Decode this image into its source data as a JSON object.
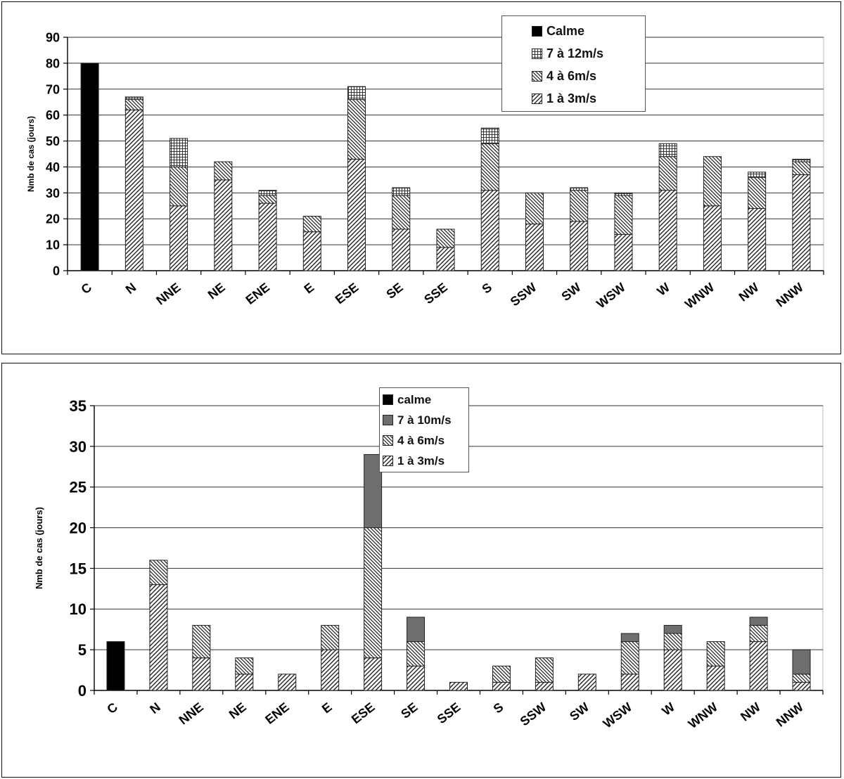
{
  "segment_styles": {
    "calme": {
      "fill": "#000000",
      "pattern": "solid"
    },
    "1-3": {
      "pattern": "hatch-forward"
    },
    "4-6": {
      "pattern": "hatch-backward"
    },
    "7-12": {
      "pattern": "grid"
    },
    "7-10": {
      "pattern": "solid-gray",
      "fill": "#6e6e6e"
    }
  },
  "chart_data": [
    {
      "type": "bar",
      "stacked": true,
      "ylabel": "Nmb de cas (jours)",
      "xlabel": "",
      "ylim": [
        0,
        90
      ],
      "yticks": [
        0,
        10,
        20,
        30,
        40,
        50,
        60,
        70,
        80,
        90
      ],
      "grid": true,
      "legend_position": "top-right",
      "categories": [
        "C",
        "N",
        "NNE",
        "NE",
        "ENE",
        "E",
        "ESE",
        "SE",
        "SSE",
        "S",
        "SSW",
        "SW",
        "WSW",
        "W",
        "WNW",
        "NW",
        "NNW"
      ],
      "series": [
        {
          "name": "1 à 3m/s",
          "style": "1-3",
          "values": [
            0,
            62,
            25,
            35,
            26,
            15,
            43,
            16,
            9,
            31,
            18,
            19,
            14,
            31,
            25,
            24,
            37
          ]
        },
        {
          "name": "4 à 6m/s",
          "style": "4-6",
          "values": [
            0,
            4,
            15,
            7,
            3,
            6,
            23,
            13,
            7,
            18,
            12,
            12,
            15,
            13,
            19,
            12,
            5
          ]
        },
        {
          "name": "7 à 12m/s",
          "style": "7-12",
          "values": [
            0,
            1,
            11,
            0,
            2,
            0,
            5,
            3,
            0,
            6,
            0,
            1,
            1,
            5,
            0,
            2,
            1
          ]
        },
        {
          "name": "Calme",
          "style": "calme",
          "values": [
            80,
            0,
            0,
            0,
            0,
            0,
            0,
            0,
            0,
            0,
            0,
            0,
            0,
            0,
            0,
            0,
            0
          ]
        }
      ],
      "legend_order": [
        "Calme",
        "7 à 12m/s",
        "4 à 6m/s",
        "1 à 3m/s"
      ]
    },
    {
      "type": "bar",
      "stacked": true,
      "ylabel": "Nmb de cas (jours)",
      "xlabel": "",
      "ylim": [
        0,
        35
      ],
      "yticks": [
        0,
        5,
        10,
        15,
        20,
        25,
        30,
        35
      ],
      "grid": true,
      "legend_position": "top-center",
      "categories": [
        "C",
        "N",
        "NNE",
        "NE",
        "ENE",
        "E",
        "ESE",
        "SE",
        "SSE",
        "S",
        "SSW",
        "SW",
        "WSW",
        "W",
        "WNW",
        "NW",
        "NNW"
      ],
      "series": [
        {
          "name": "1 à 3m/s",
          "style": "1-3",
          "values": [
            0,
            13,
            4,
            2,
            2,
            5,
            4,
            3,
            1,
            1,
            1,
            2,
            2,
            5,
            3,
            6,
            1
          ]
        },
        {
          "name": "4 à 6m/s",
          "style": "4-6",
          "values": [
            0,
            3,
            4,
            2,
            0,
            3,
            16,
            3,
            0,
            2,
            3,
            0,
            4,
            2,
            3,
            2,
            1
          ]
        },
        {
          "name": "7 à 10m/s",
          "style": "7-10",
          "values": [
            0,
            0,
            0,
            0,
            0,
            0,
            9,
            3,
            0,
            0,
            0,
            0,
            1,
            1,
            0,
            1,
            3
          ]
        },
        {
          "name": "calme",
          "style": "calme",
          "values": [
            6,
            0,
            0,
            0,
            0,
            0,
            0,
            0,
            0,
            0,
            0,
            0,
            0,
            0,
            0,
            0,
            0
          ]
        }
      ],
      "legend_order": [
        "calme",
        "7 à 10m/s",
        "4 à 6m/s",
        "1 à 3m/s"
      ]
    }
  ]
}
